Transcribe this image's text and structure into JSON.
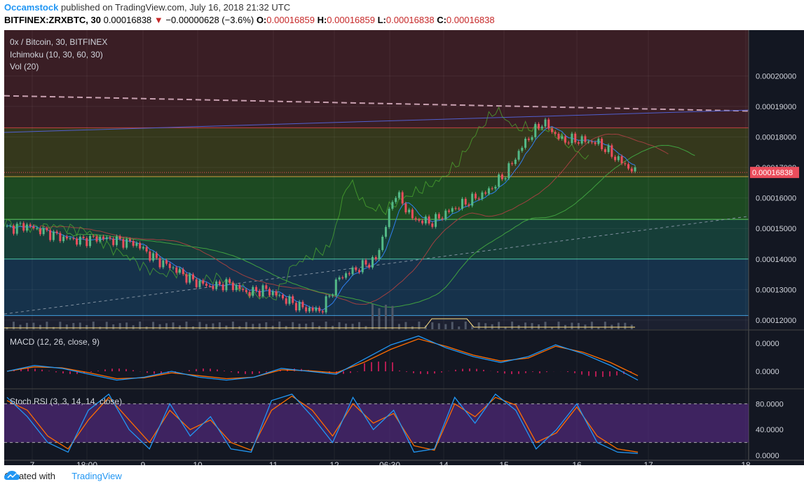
{
  "header": {
    "user": "Occamstock",
    "published": "published on TradingView.com, July 16, 2018 21:32 UTC",
    "symbol": "BITFINEX:ZRXBTC, 30",
    "price": "0.00016838",
    "change_arrow": "▼",
    "change": "−0.00000628 (−3.6%)",
    "o_label": "O:",
    "o_value": "0.00016859",
    "h_label": "H:",
    "h_value": "0.00016859",
    "l_label": "L:",
    "l_value": "0.00016838",
    "c_label": "C:",
    "c_value": "0.00016838"
  },
  "legend": {
    "title": "0x / Bitcoin, 30, BITFINEX",
    "ichimoku": "Ichimoku (10, 30, 60, 30)",
    "vol": "Vol (20)",
    "macd": "MACD (12, 26, close, 9)",
    "stoch": "Stoch RSI (3, 3, 14, 14, close)"
  },
  "footer": {
    "created": "Created with",
    "brand": "TradingView"
  },
  "colors": {
    "background": "#131722",
    "up": "#53b987",
    "down": "#eb4d5c",
    "macd_line": "#2196f3",
    "signal_line": "#ff6d00",
    "histogram": "#e91e63",
    "stoch_k": "#2196f3",
    "stoch_d": "#ff6d00",
    "price_tag": "#eb4d5c"
  },
  "chart_data": [
    {
      "type": "candlestick",
      "title": "0x / Bitcoin, 30, BITFINEX",
      "ylim": [
        0.000117,
        0.000215
      ],
      "y_ticks": [
        "0.00020000",
        "0.00019000",
        "0.00018000",
        "0.00017000",
        "0.00016000",
        "0.00015000",
        "0.00014000",
        "0.00013000",
        "0.00012000"
      ],
      "x_ticks": [
        "7",
        "18:00",
        "9",
        "10",
        "11",
        "12",
        "06:30",
        "14",
        "15",
        "16",
        "17",
        "18"
      ],
      "last_price": "0.00016838",
      "close_series": [
        0.00015,
        0.000151,
        0.000149,
        0.000147,
        0.000146,
        0.000147,
        0.000146,
        0.000145,
        0.00014,
        0.000137,
        0.000133,
        0.000131,
        0.000132,
        0.000129,
        0.00013,
        0.000127,
        0.000124,
        0.000123,
        0.000134,
        0.000137,
        0.00014,
        0.000162,
        0.000153,
        0.000152,
        0.000156,
        0.000159,
        0.000162,
        0.000168,
        0.000178,
        0.000185,
        0.000179,
        0.000179,
        0.000178,
        0.000173,
        0.00016838
      ],
      "horizontal_levels": [
        0.000183,
        0.000167,
        0.000153,
        0.00014,
        0.0001215
      ],
      "trendlines": [
        {
          "style": "dashed",
          "from": [
            0,
            0.0001935
          ],
          "to": [
            1,
            0.0001885
          ]
        },
        {
          "style": "solid",
          "from": [
            0,
            0.0001815
          ],
          "to": [
            1,
            0.0001888
          ]
        },
        {
          "style": "dashed",
          "from": [
            0,
            0.000122
          ],
          "to": [
            1,
            0.000154
          ]
        }
      ]
    },
    {
      "type": "line",
      "title": "MACD (12, 26, close, 9)",
      "y_ticks": [
        "0.0000",
        "0.0000"
      ],
      "series": [
        {
          "values": [
            0.0,
            0.2,
            0.1,
            -0.1,
            -0.3,
            -0.2,
            0.0,
            -0.2,
            -0.3,
            -0.2,
            0.1,
            0.0,
            -0.1,
            0.4,
            0.9,
            1.2,
            0.8,
            0.5,
            0.3,
            0.5,
            0.9,
            0.6,
            0.2,
            -0.3
          ]
        },
        {
          "values": [
            0.0,
            0.15,
            0.12,
            -0.05,
            -0.25,
            -0.22,
            -0.05,
            -0.15,
            -0.25,
            -0.2,
            0.05,
            0.02,
            -0.05,
            0.3,
            0.75,
            1.1,
            0.85,
            0.55,
            0.35,
            0.45,
            0.85,
            0.65,
            0.3,
            -0.15
          ]
        }
      ]
    },
    {
      "type": "line",
      "title": "Stoch RSI (3, 3, 14, 14, close)",
      "y_ticks": [
        "80.0000",
        "40.0000",
        "0.0000"
      ],
      "ylim": [
        0,
        100
      ],
      "bands": [
        80,
        20
      ],
      "series": [
        {
          "values": [
            90,
            60,
            20,
            5,
            70,
            95,
            40,
            10,
            80,
            30,
            60,
            10,
            5,
            85,
            95,
            60,
            20,
            90,
            40,
            70,
            5,
            10,
            90,
            50,
            95,
            70,
            10,
            40,
            80,
            20,
            5,
            3
          ]
        },
        {
          "values": [
            85,
            70,
            30,
            10,
            55,
            90,
            55,
            20,
            70,
            40,
            55,
            20,
            8,
            70,
            92,
            70,
            30,
            80,
            50,
            65,
            15,
            8,
            80,
            60,
            90,
            78,
            20,
            35,
            75,
            30,
            10,
            5
          ]
        }
      ]
    }
  ]
}
